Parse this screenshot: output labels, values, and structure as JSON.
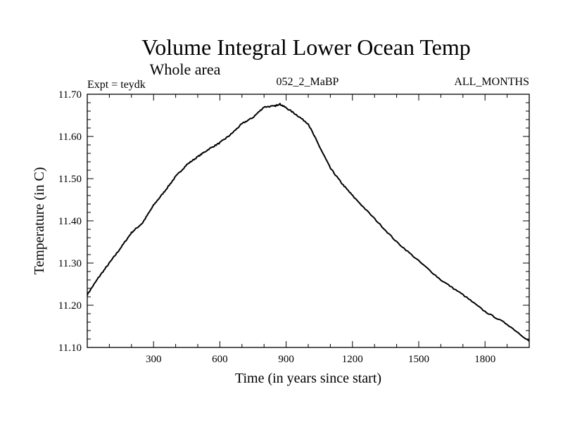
{
  "chart_data": {
    "type": "line",
    "title": "Volume Integral Lower Ocean Temp",
    "subtitle": "Whole area",
    "annotations": {
      "left": "Expt = teydk",
      "center": "052_2_MaBP",
      "right": "ALL_MONTHS"
    },
    "xlabel": "Time (in years since start)",
    "ylabel": "Temperature (in C)",
    "xlim": [
      0,
      2000
    ],
    "ylim": [
      11.1,
      11.7
    ],
    "xticks": [
      300,
      600,
      900,
      1200,
      1500,
      1800
    ],
    "xtick_labels": [
      "300",
      "600",
      "900",
      "1200",
      "1500",
      "1800"
    ],
    "yticks": [
      11.1,
      11.2,
      11.3,
      11.4,
      11.5,
      11.6,
      11.7
    ],
    "ytick_labels": [
      "11.10",
      "11.20",
      "11.30",
      "11.40",
      "11.50",
      "11.60",
      "11.70"
    ],
    "grid": false,
    "series": [
      {
        "name": "Volume Integral Lower Ocean Temp",
        "color": "#000000",
        "x": [
          0,
          50,
          100,
          150,
          200,
          250,
          300,
          350,
          400,
          450,
          500,
          550,
          600,
          650,
          700,
          750,
          800,
          850,
          870,
          900,
          950,
          1000,
          1050,
          1100,
          1150,
          1200,
          1300,
          1400,
          1500,
          1600,
          1700,
          1800,
          1900,
          2000
        ],
        "y": [
          11.225,
          11.265,
          11.3,
          11.335,
          11.372,
          11.395,
          11.437,
          11.47,
          11.505,
          11.533,
          11.552,
          11.57,
          11.585,
          11.605,
          11.63,
          11.645,
          11.67,
          11.672,
          11.677,
          11.668,
          11.65,
          11.63,
          11.577,
          11.525,
          11.49,
          11.46,
          11.405,
          11.35,
          11.305,
          11.26,
          11.225,
          11.185,
          11.155,
          11.115
        ]
      }
    ]
  }
}
